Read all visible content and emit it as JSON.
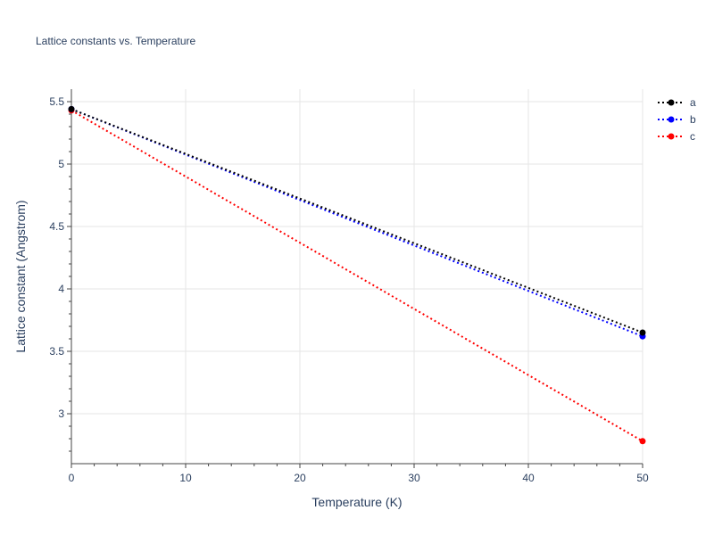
{
  "chart_data": {
    "type": "line",
    "title": "Lattice constants vs. Temperature",
    "xlabel": "Temperature (K)",
    "ylabel": "Lattice constant (Angstrom)",
    "xlim": [
      0,
      50
    ],
    "ylim": [
      2.6,
      5.6
    ],
    "xticks": [
      0,
      10,
      20,
      30,
      40,
      50
    ],
    "yticks": [
      3,
      3.5,
      4,
      4.5,
      5,
      5.5
    ],
    "grid": true,
    "legend_position": "top-right",
    "line_style": "dotted",
    "x": [
      0,
      50
    ],
    "series": [
      {
        "name": "a",
        "color": "#000000",
        "values": [
          5.44,
          3.65
        ]
      },
      {
        "name": "b",
        "color": "#0000ff",
        "values": [
          5.44,
          3.62
        ]
      },
      {
        "name": "c",
        "color": "#ff0000",
        "values": [
          5.43,
          2.78
        ]
      }
    ]
  }
}
